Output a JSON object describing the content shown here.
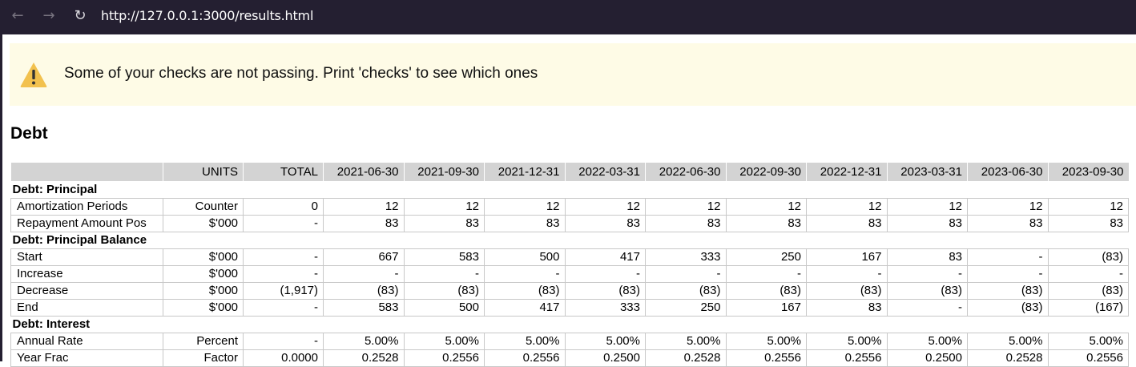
{
  "browser": {
    "url": "http://127.0.0.1:3000/results.html",
    "back_icon": "←",
    "forward_icon": "→",
    "reload_icon": "↻"
  },
  "warning": {
    "text": "Some of your checks are not passing. Print 'checks' to see which ones"
  },
  "page_title": "Debt",
  "table": {
    "headers": [
      "",
      "UNITS",
      "TOTAL",
      "2021-06-30",
      "2021-09-30",
      "2021-12-31",
      "2022-03-31",
      "2022-06-30",
      "2022-09-30",
      "2022-12-31",
      "2023-03-31",
      "2023-06-30",
      "2023-09-30"
    ],
    "groups": [
      {
        "title": "Debt: Principal",
        "rows": [
          [
            "Amortization Periods",
            "Counter",
            "0",
            "12",
            "12",
            "12",
            "12",
            "12",
            "12",
            "12",
            "12",
            "12",
            "12"
          ],
          [
            "Repayment Amount Pos",
            "$'000",
            "-",
            "83",
            "83",
            "83",
            "83",
            "83",
            "83",
            "83",
            "83",
            "83",
            "83"
          ]
        ]
      },
      {
        "title": "Debt: Principal Balance",
        "rows": [
          [
            "Start",
            "$'000",
            "-",
            "667",
            "583",
            "500",
            "417",
            "333",
            "250",
            "167",
            "83",
            "-",
            "(83)"
          ],
          [
            "Increase",
            "$'000",
            "-",
            "-",
            "-",
            "-",
            "-",
            "-",
            "-",
            "-",
            "-",
            "-",
            "-"
          ],
          [
            "Decrease",
            "$'000",
            "(1,917)",
            "(83)",
            "(83)",
            "(83)",
            "(83)",
            "(83)",
            "(83)",
            "(83)",
            "(83)",
            "(83)",
            "(83)"
          ],
          [
            "End",
            "$'000",
            "-",
            "583",
            "500",
            "417",
            "333",
            "250",
            "167",
            "83",
            "-",
            "(83)",
            "(167)"
          ]
        ]
      },
      {
        "title": "Debt: Interest",
        "rows": [
          [
            "Annual Rate",
            "Percent",
            "-",
            "5.00%",
            "5.00%",
            "5.00%",
            "5.00%",
            "5.00%",
            "5.00%",
            "5.00%",
            "5.00%",
            "5.00%",
            "5.00%"
          ],
          [
            "Year Frac",
            "Factor",
            "0.0000",
            "0.2528",
            "0.2556",
            "0.2556",
            "0.2500",
            "0.2528",
            "0.2556",
            "0.2556",
            "0.2500",
            "0.2528",
            "0.2556"
          ]
        ]
      }
    ]
  },
  "colors": {
    "browser_bar": "#241f31",
    "warning_bg": "#fefbe6",
    "warning_icon": "#f2c14e",
    "header_bg": "#d3d3d3",
    "cell_border": "#c8c8c8"
  }
}
